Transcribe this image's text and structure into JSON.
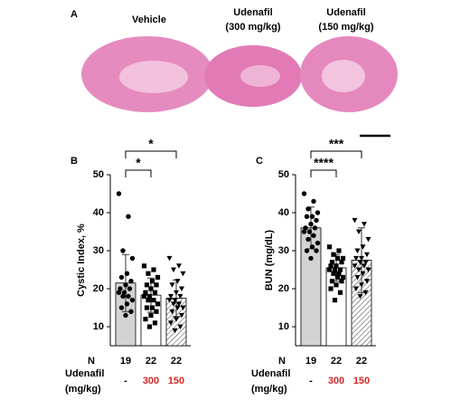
{
  "panel_a": {
    "label": "A",
    "titles": [
      [
        "Vehicle"
      ],
      [
        "Udenafil",
        "(300 mg/kg)"
      ],
      [
        "Udenafil",
        "(150 mg/kg)"
      ]
    ]
  },
  "chart_data": [
    {
      "type": "bar",
      "panel_label": "B",
      "y_label": "Cystic Index, %",
      "categories": [
        "-",
        "300",
        "150"
      ],
      "category_colors": [
        "#000000",
        "#d62728",
        "#d62728"
      ],
      "values": [
        21.5,
        18.3,
        17.5
      ],
      "errors": [
        7.5,
        4.5,
        4.8
      ],
      "colors": [
        "#d3d3d3",
        "#ffffff",
        "#ffffff"
      ],
      "hatch": [
        false,
        false,
        true
      ],
      "markers": [
        "circle",
        "square",
        "triangle-down"
      ],
      "points": [
        [
          45,
          39,
          30,
          28,
          24,
          23,
          22,
          21,
          20,
          20,
          19,
          19,
          18,
          18,
          17,
          16,
          15,
          14,
          13
        ],
        [
          26,
          25,
          24,
          23,
          22,
          21,
          21,
          20,
          19,
          19,
          18,
          18,
          17,
          17,
          16,
          15,
          15,
          14,
          13,
          12,
          11,
          10
        ],
        [
          28,
          26,
          25,
          24,
          22,
          21,
          20,
          19,
          18,
          18,
          17,
          17,
          16,
          16,
          15,
          15,
          14,
          13,
          12,
          11,
          10,
          9
        ]
      ],
      "n_label": "N",
      "n": [
        19,
        22,
        22
      ],
      "dose_label": [
        "Udenafil",
        "(mg/kg)"
      ],
      "comparisons": [
        {
          "from": 0,
          "to": 1,
          "label": "*"
        },
        {
          "from": 0,
          "to": 2,
          "label": "*"
        }
      ],
      "ylim": [
        5,
        50
      ],
      "yticks": [
        10,
        20,
        30,
        40,
        50
      ]
    },
    {
      "type": "bar",
      "panel_label": "C",
      "y_label": "BUN (mg/dL)",
      "categories": [
        "-",
        "300",
        "150"
      ],
      "category_colors": [
        "#000000",
        "#d62728",
        "#d62728"
      ],
      "values": [
        36,
        25.5,
        27.5
      ],
      "errors": [
        5.5,
        3.5,
        8.5
      ],
      "colors": [
        "#d3d3d3",
        "#ffffff",
        "#ffffff"
      ],
      "hatch": [
        false,
        false,
        true
      ],
      "markers": [
        "circle",
        "square",
        "triangle-down"
      ],
      "points": [
        [
          45,
          43,
          41,
          40,
          39,
          39,
          38,
          37,
          36,
          36,
          35,
          35,
          34,
          33,
          32,
          31,
          30,
          30,
          28
        ],
        [
          31,
          30,
          29,
          28,
          28,
          27,
          27,
          26,
          26,
          25,
          25,
          25,
          24,
          24,
          23,
          23,
          22,
          22,
          21,
          20,
          19,
          17
        ],
        [
          38,
          37,
          35,
          33,
          31,
          30,
          29,
          28,
          28,
          27,
          27,
          26,
          26,
          25,
          25,
          24,
          23,
          22,
          21,
          20,
          19,
          18
        ]
      ],
      "n_label": "N",
      "n": [
        19,
        22,
        22
      ],
      "dose_label": [
        "Udenafil",
        "(mg/kg)"
      ],
      "comparisons": [
        {
          "from": 0,
          "to": 1,
          "label": "****"
        },
        {
          "from": 0,
          "to": 2,
          "label": "***"
        }
      ],
      "ylim": [
        5,
        50
      ],
      "yticks": [
        10,
        20,
        30,
        40,
        50
      ]
    }
  ]
}
